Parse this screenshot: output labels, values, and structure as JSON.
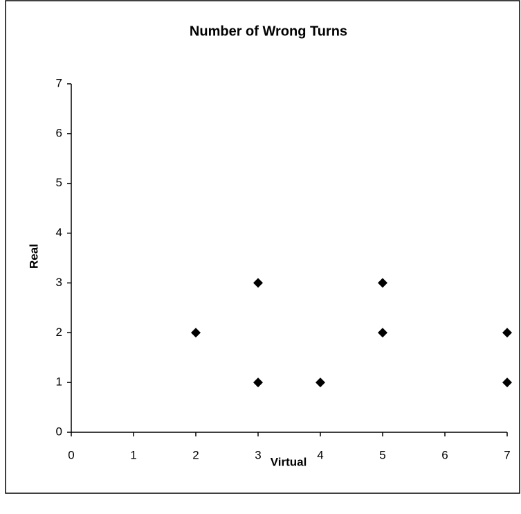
{
  "chart_data": {
    "type": "scatter",
    "title": "Number of Wrong Turns",
    "x_label": "Virtual",
    "y_label": "Real",
    "x": [
      2,
      3,
      3,
      4,
      5,
      5,
      7,
      7
    ],
    "values": [
      2,
      3,
      1,
      1,
      3,
      2,
      2,
      1
    ],
    "color": "#000000",
    "xlim": [
      0,
      7
    ],
    "xticks": [
      0,
      1,
      2,
      3,
      4,
      5,
      6,
      7
    ],
    "ylim": [
      0,
      7
    ],
    "yticks": [
      0,
      1,
      2,
      3,
      4,
      5,
      6,
      7
    ],
    "grid": false
  }
}
